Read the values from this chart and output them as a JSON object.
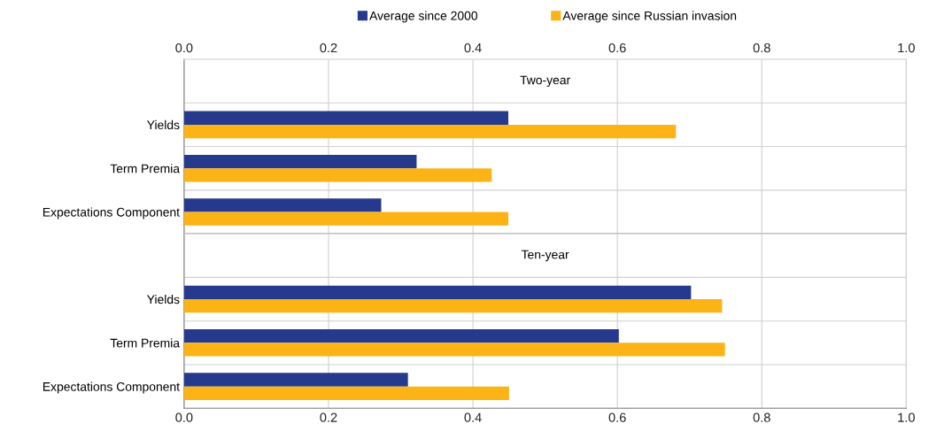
{
  "chart_data": [
    {
      "type": "bar",
      "orientation": "horizontal",
      "annotations": [
        "Two-year"
      ],
      "categories": [
        "Yields",
        "Term Premia",
        "Expectations Component"
      ],
      "series": [
        {
          "name": "Average since 2000",
          "color": "#253a8c",
          "values": [
            0.449,
            0.322,
            0.273
          ]
        },
        {
          "name": "Average since Russian invasion",
          "color": "#fbb316",
          "values": [
            0.681,
            0.426,
            0.449
          ]
        }
      ],
      "xlim": [
        0,
        1
      ],
      "x2lim": [
        0,
        1
      ],
      "x2ticks": [
        {
          "value": 0,
          "label": "0.0"
        },
        {
          "value": 0.2,
          "label": "0.2"
        },
        {
          "value": 0.4,
          "label": "0.4"
        },
        {
          "value": 0.6,
          "label": "0.6"
        },
        {
          "value": 0.8,
          "label": "0.8"
        },
        {
          "value": 1,
          "label": "1.0"
        }
      ],
      "tick_labels": "y",
      "grid": true,
      "legend": "top"
    },
    {
      "type": "bar",
      "orientation": "horizontal",
      "annotations": [
        "Ten-year"
      ],
      "categories": [
        "Yields",
        "Term Premia",
        "Expectations Component"
      ],
      "series": [
        {
          "color": "#253a8c",
          "values": [
            0.702,
            0.602,
            0.31
          ]
        },
        {
          "color": "#fbb316",
          "values": [
            0.745,
            0.749,
            0.45
          ]
        }
      ],
      "xlim": [
        0,
        1
      ],
      "xticks": [
        {
          "value": 0,
          "label": "0.0"
        },
        {
          "value": 0.2,
          "label": "0.2"
        },
        {
          "value": 0.4,
          "label": "0.4"
        },
        {
          "value": 0.6,
          "label": "0.6"
        },
        {
          "value": 0.8,
          "label": "0.8"
        },
        {
          "value": 1,
          "label": "1.0"
        }
      ],
      "grid": true
    }
  ]
}
